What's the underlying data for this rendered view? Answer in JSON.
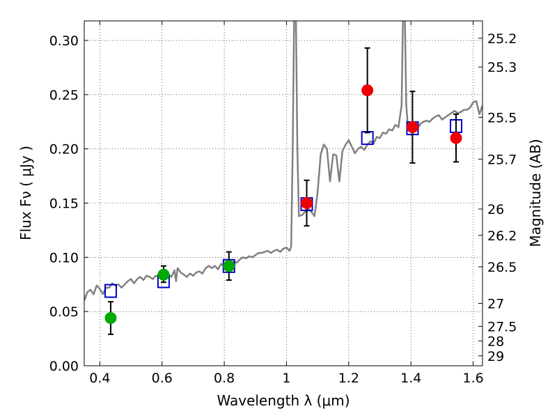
{
  "chart_data": {
    "type": "scatter",
    "xlabel": "Wavelength  λ (μm)",
    "ylabel": "Flux  Fν  ( μJy )",
    "y2label": "Magnitude (AB)",
    "xlim": [
      0.35,
      1.63
    ],
    "ylim": [
      0.0,
      0.318
    ],
    "grid": true,
    "xticks": [
      {
        "value": 0.4,
        "label": "0.4"
      },
      {
        "value": 0.6,
        "label": "0.6"
      },
      {
        "value": 0.8,
        "label": "0.8"
      },
      {
        "value": 1.0,
        "label": "1"
      },
      {
        "value": 1.2,
        "label": "1.2"
      },
      {
        "value": 1.4,
        "label": "1.4"
      },
      {
        "value": 1.6,
        "label": "1.6"
      }
    ],
    "yticks": [
      {
        "value": 0.0,
        "label": "0.00"
      },
      {
        "value": 0.05,
        "label": "0.05"
      },
      {
        "value": 0.1,
        "label": "0.10"
      },
      {
        "value": 0.15,
        "label": "0.15"
      },
      {
        "value": 0.2,
        "label": "0.20"
      },
      {
        "value": 0.25,
        "label": "0.25"
      },
      {
        "value": 0.3,
        "label": "0.30"
      }
    ],
    "y2ticks": [
      {
        "mag": 25.2,
        "label": "25.2"
      },
      {
        "mag": 25.3,
        "label": "25.3"
      },
      {
        "mag": 25.5,
        "label": "25.5"
      },
      {
        "mag": 25.7,
        "label": "25.7"
      },
      {
        "mag": 26,
        "label": "26"
      },
      {
        "mag": 26.2,
        "label": "26.2"
      },
      {
        "mag": 26.5,
        "label": "26.5"
      },
      {
        "mag": 27,
        "label": "27"
      },
      {
        "mag": 27.5,
        "label": "27.5"
      },
      {
        "mag": 28,
        "label": "28"
      },
      {
        "mag": 29,
        "label": "29"
      }
    ],
    "series": [
      {
        "kind": "line",
        "color": "#808080",
        "points": [
          [
            0.35,
            0.06
          ],
          [
            0.36,
            0.068
          ],
          [
            0.37,
            0.07
          ],
          [
            0.38,
            0.066
          ],
          [
            0.39,
            0.074
          ],
          [
            0.4,
            0.071
          ],
          [
            0.41,
            0.066
          ],
          [
            0.42,
            0.072
          ],
          [
            0.43,
            0.072
          ],
          [
            0.44,
            0.076
          ],
          [
            0.45,
            0.074
          ],
          [
            0.46,
            0.075
          ],
          [
            0.47,
            0.072
          ],
          [
            0.48,
            0.075
          ],
          [
            0.49,
            0.078
          ],
          [
            0.5,
            0.08
          ],
          [
            0.51,
            0.076
          ],
          [
            0.52,
            0.08
          ],
          [
            0.53,
            0.082
          ],
          [
            0.54,
            0.079
          ],
          [
            0.55,
            0.083
          ],
          [
            0.56,
            0.082
          ],
          [
            0.57,
            0.08
          ],
          [
            0.58,
            0.083
          ],
          [
            0.59,
            0.082
          ],
          [
            0.6,
            0.081
          ],
          [
            0.61,
            0.083
          ],
          [
            0.62,
            0.084
          ],
          [
            0.63,
            0.082
          ],
          [
            0.64,
            0.088
          ],
          [
            0.645,
            0.078
          ],
          [
            0.65,
            0.09
          ],
          [
            0.66,
            0.086
          ],
          [
            0.67,
            0.084
          ],
          [
            0.68,
            0.082
          ],
          [
            0.69,
            0.085
          ],
          [
            0.7,
            0.083
          ],
          [
            0.71,
            0.086
          ],
          [
            0.72,
            0.087
          ],
          [
            0.73,
            0.085
          ],
          [
            0.74,
            0.09
          ],
          [
            0.75,
            0.092
          ],
          [
            0.76,
            0.09
          ],
          [
            0.77,
            0.092
          ],
          [
            0.78,
            0.089
          ],
          [
            0.79,
            0.094
          ],
          [
            0.8,
            0.091
          ],
          [
            0.81,
            0.094
          ],
          [
            0.82,
            0.095
          ],
          [
            0.83,
            0.096
          ],
          [
            0.84,
            0.095
          ],
          [
            0.85,
            0.098
          ],
          [
            0.86,
            0.1
          ],
          [
            0.87,
            0.099
          ],
          [
            0.88,
            0.101
          ],
          [
            0.89,
            0.1
          ],
          [
            0.9,
            0.102
          ],
          [
            0.91,
            0.104
          ],
          [
            0.92,
            0.104
          ],
          [
            0.93,
            0.105
          ],
          [
            0.94,
            0.106
          ],
          [
            0.95,
            0.104
          ],
          [
            0.96,
            0.106
          ],
          [
            0.97,
            0.107
          ],
          [
            0.98,
            0.105
          ],
          [
            0.99,
            0.108
          ],
          [
            1.0,
            0.109
          ],
          [
            1.01,
            0.106
          ],
          [
            1.015,
            0.11
          ],
          [
            1.02,
            0.2
          ],
          [
            1.025,
            0.33
          ],
          [
            1.03,
            0.33
          ],
          [
            1.035,
            0.2
          ],
          [
            1.04,
            0.138
          ],
          [
            1.05,
            0.139
          ],
          [
            1.06,
            0.142
          ],
          [
            1.07,
            0.145
          ],
          [
            1.08,
            0.142
          ],
          [
            1.09,
            0.138
          ],
          [
            1.1,
            0.16
          ],
          [
            1.11,
            0.195
          ],
          [
            1.12,
            0.204
          ],
          [
            1.13,
            0.2
          ],
          [
            1.14,
            0.17
          ],
          [
            1.15,
            0.195
          ],
          [
            1.16,
            0.194
          ],
          [
            1.17,
            0.17
          ],
          [
            1.18,
            0.198
          ],
          [
            1.19,
            0.204
          ],
          [
            1.2,
            0.208
          ],
          [
            1.21,
            0.202
          ],
          [
            1.22,
            0.196
          ],
          [
            1.23,
            0.2
          ],
          [
            1.24,
            0.202
          ],
          [
            1.25,
            0.199
          ],
          [
            1.26,
            0.204
          ],
          [
            1.27,
            0.207
          ],
          [
            1.28,
            0.205
          ],
          [
            1.29,
            0.211
          ],
          [
            1.3,
            0.21
          ],
          [
            1.31,
            0.215
          ],
          [
            1.32,
            0.214
          ],
          [
            1.33,
            0.218
          ],
          [
            1.34,
            0.217
          ],
          [
            1.35,
            0.222
          ],
          [
            1.36,
            0.22
          ],
          [
            1.37,
            0.24
          ],
          [
            1.375,
            0.33
          ],
          [
            1.38,
            0.33
          ],
          [
            1.385,
            0.24
          ],
          [
            1.39,
            0.221
          ],
          [
            1.4,
            0.219
          ],
          [
            1.41,
            0.222
          ],
          [
            1.42,
            0.218
          ],
          [
            1.43,
            0.223
          ],
          [
            1.44,
            0.225
          ],
          [
            1.45,
            0.226
          ],
          [
            1.46,
            0.225
          ],
          [
            1.47,
            0.228
          ],
          [
            1.48,
            0.23
          ],
          [
            1.49,
            0.231
          ],
          [
            1.5,
            0.227
          ],
          [
            1.51,
            0.229
          ],
          [
            1.52,
            0.231
          ],
          [
            1.53,
            0.233
          ],
          [
            1.54,
            0.235
          ],
          [
            1.55,
            0.233
          ],
          [
            1.56,
            0.234
          ],
          [
            1.57,
            0.236
          ],
          [
            1.58,
            0.236
          ],
          [
            1.59,
            0.238
          ],
          [
            1.6,
            0.243
          ],
          [
            1.61,
            0.244
          ],
          [
            1.62,
            0.232
          ],
          [
            1.63,
            0.24
          ]
        ]
      },
      {
        "kind": "open-square",
        "color": "#0000cc",
        "points": [
          [
            0.435,
            0.069
          ],
          [
            0.605,
            0.078
          ],
          [
            0.815,
            0.092
          ],
          [
            1.065,
            0.149
          ],
          [
            1.26,
            0.21
          ],
          [
            1.405,
            0.219
          ],
          [
            1.545,
            0.221
          ]
        ]
      },
      {
        "kind": "errorbar",
        "color": "#00aa00",
        "points": [
          {
            "x": 0.435,
            "y": 0.044,
            "lo": 0.029,
            "hi": 0.059
          },
          {
            "x": 0.605,
            "y": 0.084,
            "lo": 0.077,
            "hi": 0.092
          },
          {
            "x": 0.815,
            "y": 0.092,
            "lo": 0.079,
            "hi": 0.105
          }
        ]
      },
      {
        "kind": "errorbar",
        "color": "#ee0000",
        "points": [
          {
            "x": 1.065,
            "y": 0.15,
            "lo": 0.129,
            "hi": 0.171
          },
          {
            "x": 1.26,
            "y": 0.254,
            "lo": 0.215,
            "hi": 0.293
          },
          {
            "x": 1.405,
            "y": 0.22,
            "lo": 0.187,
            "hi": 0.253
          },
          {
            "x": 1.545,
            "y": 0.21,
            "lo": 0.188,
            "hi": 0.232
          }
        ]
      }
    ]
  }
}
